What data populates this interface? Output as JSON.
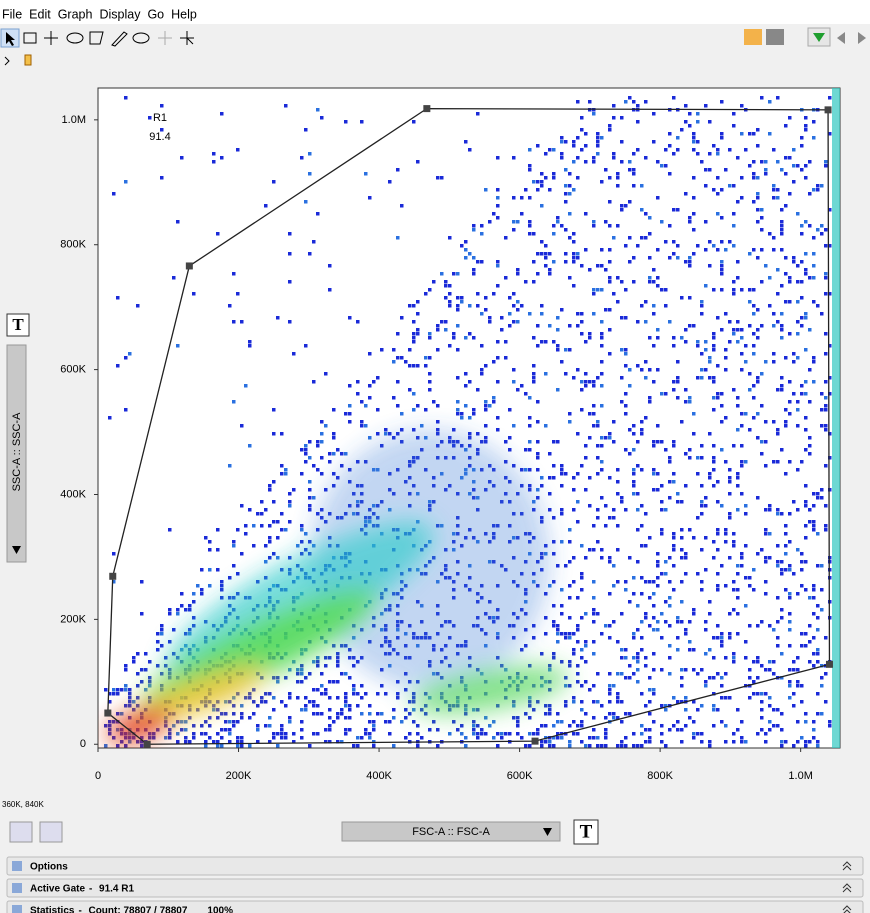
{
  "menu": [
    "File",
    "Edit",
    "Graph",
    "Display",
    "Go",
    "Help"
  ],
  "chart_data": {
    "type": "density-scatter",
    "x_label": "FSC-A :: FSC-A",
    "y_label": "SSC-A :: SSC-A",
    "xlim": [
      0,
      1056000
    ],
    "ylim": [
      -6000,
      1051000
    ],
    "xticks": [
      {
        "value": 0,
        "label": "0"
      },
      {
        "value": 200000,
        "label": "200K"
      },
      {
        "value": 400000,
        "label": "400K"
      },
      {
        "value": 600000,
        "label": "600K"
      },
      {
        "value": 800000,
        "label": "800K"
      },
      {
        "value": 1000000,
        "label": "1.0M"
      }
    ],
    "yticks": [
      {
        "value": 0,
        "label": "0"
      },
      {
        "value": 200000,
        "label": "200K"
      },
      {
        "value": 400000,
        "label": "400K"
      },
      {
        "value": 600000,
        "label": "600K"
      },
      {
        "value": 800000,
        "label": "800K"
      },
      {
        "value": 1000000,
        "label": "1.0M"
      }
    ],
    "gate": {
      "name": "R1",
      "value_label": "91.4",
      "x": [
        468000,
        1039000,
        1041000,
        622000,
        70000,
        14000,
        21000,
        130000
      ],
      "y": [
        1018000,
        1016000,
        128000,
        5000,
        0,
        50000,
        269000,
        766000
      ]
    }
  },
  "coords": "360K, 840K",
  "panels": [
    {
      "title": "Options"
    },
    {
      "title": "Active Gate",
      "detail": "91.4 R1"
    },
    {
      "title": "Statistics",
      "detail": "Count: 78807 / 78807",
      "percent": "100%"
    }
  ]
}
